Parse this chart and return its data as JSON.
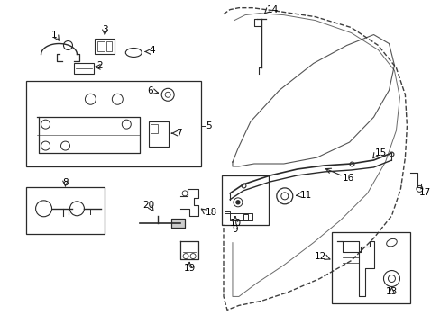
{
  "bg_color": "#ffffff",
  "line_color": "#2a2a2a",
  "text_color": "#000000",
  "fig_width": 4.89,
  "fig_height": 3.6,
  "dpi": 100
}
